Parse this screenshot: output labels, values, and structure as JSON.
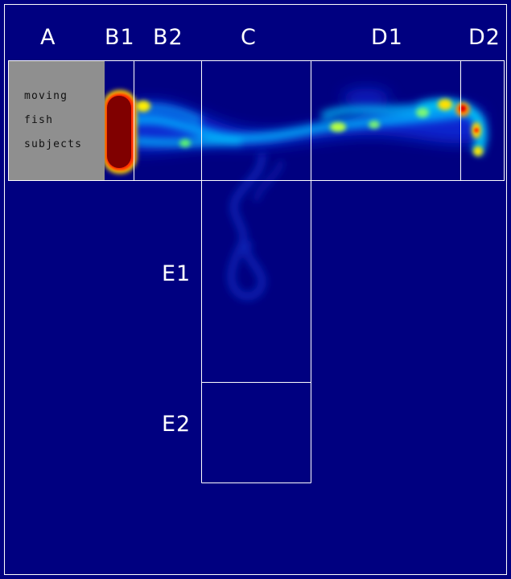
{
  "zones": {
    "A": "A",
    "B1": "B1",
    "B2": "B2",
    "C": "C",
    "D1": "D1",
    "D2": "D2",
    "E1": "E1",
    "E2": "E2"
  },
  "panel_a": {
    "line1": "moving",
    "line2": "fish",
    "line3": "subjects"
  },
  "colors": {
    "background": "#000080",
    "lines": "#ffffff",
    "panel": "#8f8f8f",
    "heat_max": "#800000"
  }
}
